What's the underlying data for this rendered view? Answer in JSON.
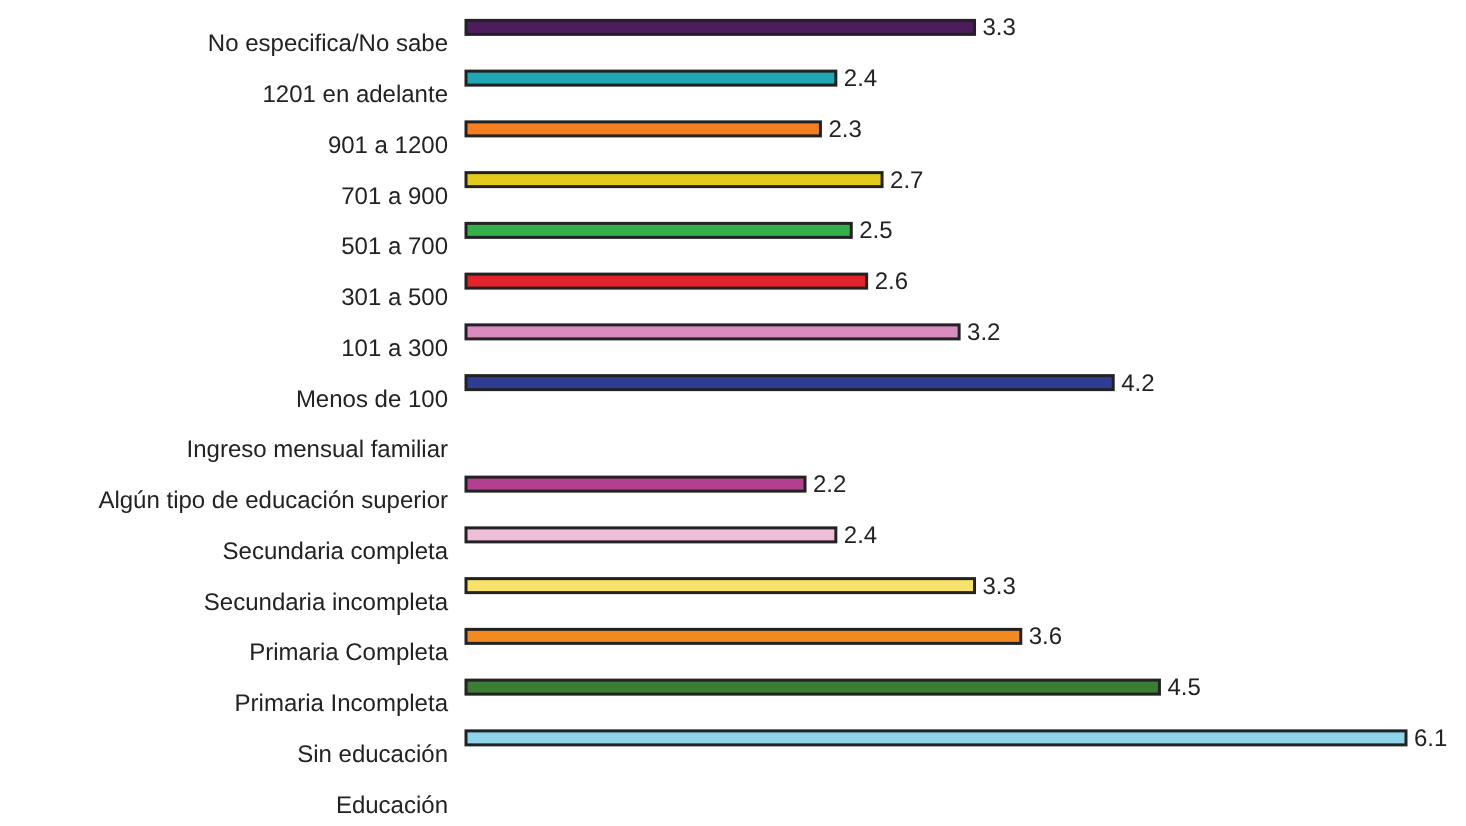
{
  "chart_data": {
    "type": "bar",
    "orientation": "horizontal",
    "relative": false,
    "data_labels": true,
    "categories": [
      "No especifica/No sabe",
      "1201 en adelante",
      "901 a 1200",
      "701 a 900",
      "501 a 700",
      "301 a 500",
      "101 a 300",
      "Menos de 100",
      "Ingreso mensual familiar",
      "Algún tipo de educación superior",
      "Secundaria completa",
      "Secundaria incompleta",
      "Primaria Completa",
      "Primaria Incompleta",
      "Sin educación",
      "Educación"
    ],
    "values": [
      3.3,
      2.4,
      2.3,
      2.7,
      2.5,
      2.6,
      3.2,
      4.2,
      null,
      2.2,
      2.4,
      3.3,
      3.6,
      4.5,
      6.1,
      null
    ],
    "colors": [
      "#4b1d5a",
      "#1fa8b3",
      "#f57f20",
      "#e3cb1c",
      "#33b04a",
      "#e1232a",
      "#d98cc0",
      "#2e3d93",
      null,
      "#b2408f",
      "#efbcd9",
      "#f7e36b",
      "#f28a1e",
      "#3a7d35",
      "#8fd4ea",
      null
    ]
  }
}
